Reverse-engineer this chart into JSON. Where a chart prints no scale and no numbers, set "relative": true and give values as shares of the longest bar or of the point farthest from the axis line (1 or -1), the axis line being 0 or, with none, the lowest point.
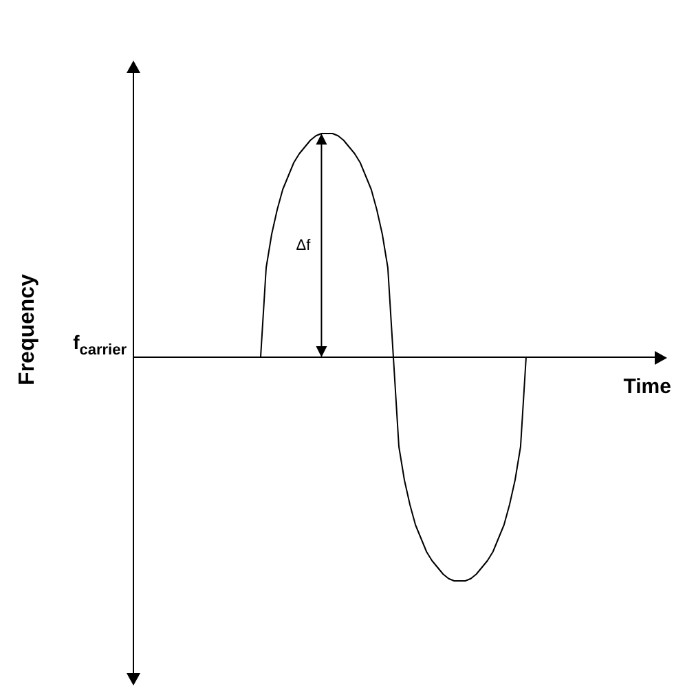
{
  "chart_data": {
    "type": "line",
    "relative": true,
    "xlabel": "Time",
    "ylabel": "Frequency",
    "color": "#000000",
    "categories": [
      null,
      null,
      null,
      null,
      null,
      null,
      null,
      null,
      null,
      null,
      null,
      null,
      null,
      null,
      null,
      null,
      null,
      null,
      null,
      null,
      null,
      null,
      null,
      null,
      null,
      null,
      null,
      null,
      null,
      null,
      null,
      null,
      null,
      null,
      null,
      null,
      null,
      null,
      null,
      null,
      null,
      null,
      null,
      null,
      null,
      null,
      null,
      null,
      null,
      null,
      null,
      null,
      null,
      null,
      null,
      null,
      null,
      null,
      null,
      null,
      null,
      null,
      null,
      null,
      null,
      null,
      null,
      null,
      null,
      null,
      null,
      null,
      null,
      null,
      null,
      null,
      null,
      null,
      null,
      null,
      null,
      null,
      null,
      null,
      null,
      null,
      null,
      null,
      null,
      null,
      null,
      null,
      null,
      null,
      null,
      null,
      null
    ],
    "values": [
      null,
      null,
      null,
      null,
      null,
      null,
      null,
      null,
      null,
      null,
      null,
      null,
      null,
      null,
      null,
      null,
      null,
      null,
      null,
      null,
      null,
      null,
      null,
      0,
      0.4,
      0.55,
      0.66,
      0.75,
      0.81,
      0.87,
      0.91,
      0.94,
      0.97,
      0.99,
      1,
      1,
      1,
      0.99,
      0.97,
      0.94,
      0.91,
      0.87,
      0.81,
      0.75,
      0.66,
      0.55,
      0.4,
      0,
      -0.4,
      -0.55,
      -0.66,
      -0.75,
      -0.81,
      -0.87,
      -0.91,
      -0.94,
      -0.97,
      -0.99,
      -1,
      -1,
      -1,
      -0.99,
      -0.97,
      -0.94,
      -0.91,
      -0.87,
      -0.81,
      -0.75,
      -0.66,
      -0.55,
      -0.4,
      0,
      null,
      null,
      null,
      null,
      null,
      null,
      null,
      null,
      null,
      null,
      null,
      null,
      null,
      null,
      null,
      null,
      null,
      null,
      null,
      null,
      null,
      null,
      null,
      null,
      null
    ],
    "ref_lines": [
      {
        "axis": "y",
        "value": 0,
        "label": "f$_{carrier}$"
      }
    ],
    "annotations": [
      "Δf"
    ]
  }
}
